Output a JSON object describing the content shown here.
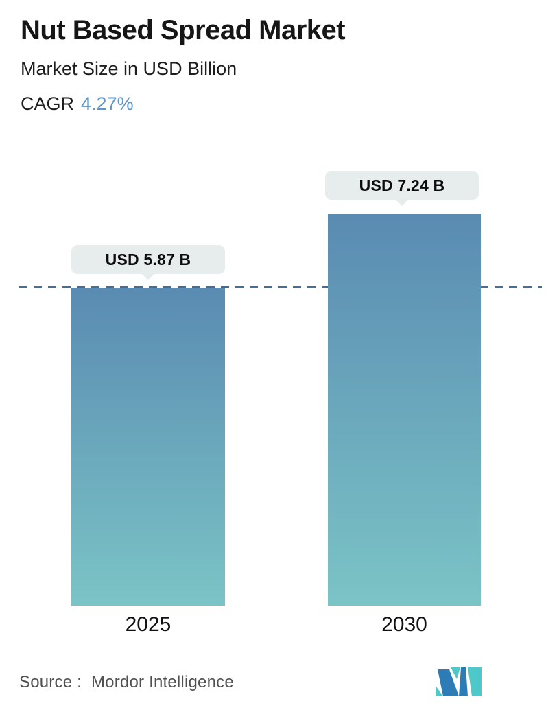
{
  "header": {
    "title": "Nut Based Spread Market",
    "subtitle": "Market Size in USD Billion",
    "cagr_label": "CAGR",
    "cagr_value": "4.27%"
  },
  "chart_data": {
    "type": "bar",
    "categories": [
      "2025",
      "2030"
    ],
    "values": [
      5.87,
      7.24
    ],
    "value_labels": [
      "USD 5.87 B",
      "USD 7.24 B"
    ],
    "title": "Nut Based Spread Market",
    "subtitle": "Market Size in USD Billion",
    "cagr": "4.27%",
    "unit": "USD Billion",
    "ylim": [
      0,
      7.24
    ],
    "grid": false,
    "legend_position": "none",
    "reference_line": {
      "at_value": 5.87,
      "style": "dashed",
      "color": "#3e6f9d"
    },
    "bar_gradient": {
      "top": "#5a8bb2",
      "bottom": "#7bc4c6"
    },
    "label_pill_bg": "#e7edec"
  },
  "footer": {
    "source_label": "Source :",
    "source_value": "Mordor Intelligence",
    "logo_name": "mordor-intelligence-logo",
    "logo_colors": {
      "blue": "#2d7cb5",
      "teal": "#4fc8c9"
    }
  },
  "colors": {
    "accent_blue": "#5e96c8",
    "title_text": "#161616",
    "body_text": "#1d1d1d",
    "source_text": "#515151",
    "background": "#ffffff"
  }
}
